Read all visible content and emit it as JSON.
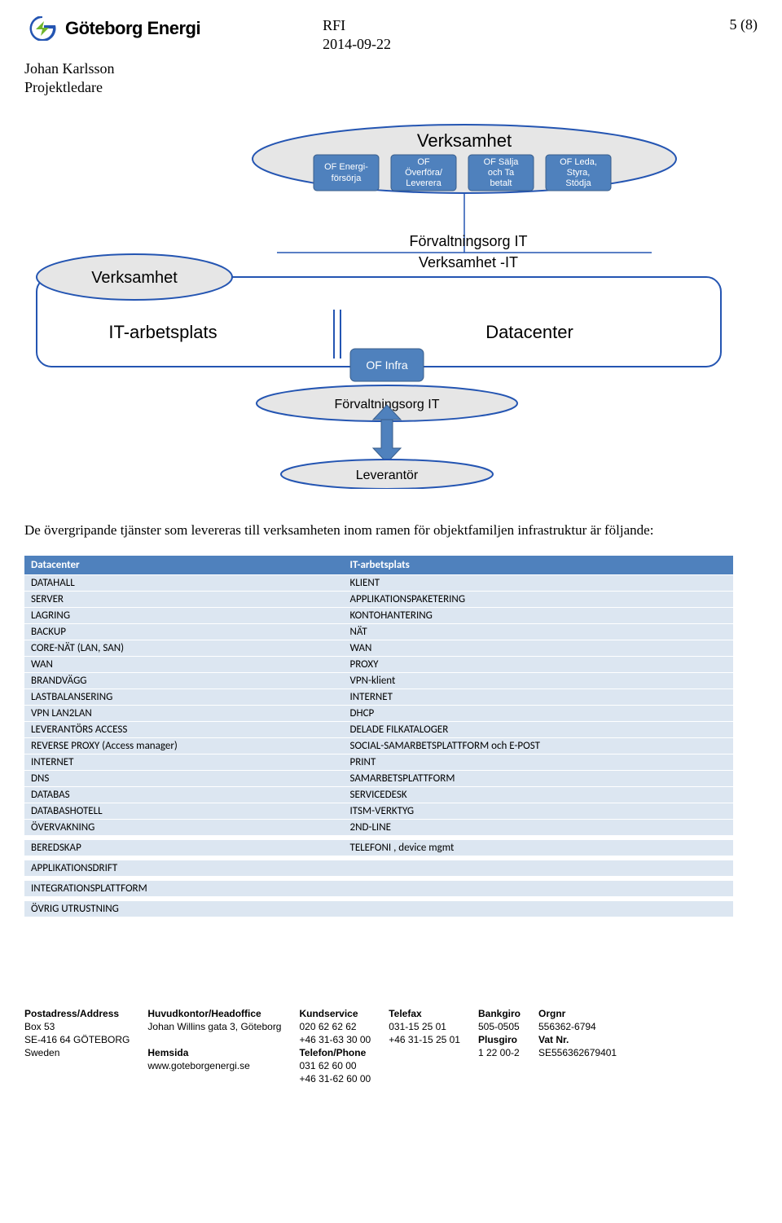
{
  "header": {
    "logo_text": "Göteborg Energi",
    "doc_type": "RFI",
    "doc_date": "2014-09-22",
    "page_num": "5 (8)",
    "author_name": "Johan Karlsson",
    "author_role": "Projektledare"
  },
  "diagram": {
    "top_ellipse": "Verksamhet",
    "top_boxes": [
      "OF Energi-\nförsörja",
      "OF\nÖverföra/\nLeverera",
      "OF Sälja\noch Ta\nbetalt",
      "OF Leda,\nStyra,\nStödja"
    ],
    "left_ellipse": "Verksamhet",
    "mid_label_top": "Förvaltningsorg IT",
    "mid_label_bottom": "Verksamhet -IT",
    "left_label": "IT-arbetsplats",
    "right_label": "Datacenter",
    "infra_box": "OF Infra",
    "infra_below": "Förvaltningsorg IT",
    "bottom_ellipse": "Leverantör",
    "colors": {
      "ellipse_fill": "#e6e6e6",
      "ellipse_stroke": "#2455b2",
      "box_fill": "#4f81bd",
      "box_stroke": "#385d8a",
      "font_color_box": "#ffffff",
      "font_color_label": "#000000",
      "big_box_stroke": "#2455b2",
      "arrow_fill": "#4f81bd"
    }
  },
  "body_text": "De övergripande tjänster som levereras till verksamheten inom ramen för objektfamiljen infrastruktur är följande:",
  "table": {
    "headers": [
      "Datacenter",
      "IT-arbetsplats"
    ],
    "rows": [
      [
        "DATAHALL",
        "KLIENT"
      ],
      [
        "SERVER",
        "APPLIKATIONSPAKETERING"
      ],
      [
        "LAGRING",
        "KONTOHANTERING"
      ],
      [
        "BACKUP",
        "NÄT"
      ],
      [
        "CORE-NÄT (LAN, SAN)",
        "WAN"
      ],
      [
        "WAN",
        "PROXY"
      ],
      [
        "BRANDVÄGG",
        "VPN-klient"
      ],
      [
        "LASTBALANSERING",
        "INTERNET"
      ],
      [
        "VPN LAN2LAN",
        "DHCP"
      ],
      [
        "LEVERANTÖRS ACCESS",
        "DELADE FILKATALOGER"
      ],
      [
        "REVERSE PROXY (Access manager)",
        "SOCIAL-SAMARBETSPLATTFORM och E-POST"
      ],
      [
        "INTERNET",
        "PRINT"
      ],
      [
        "DNS",
        "SAMARBETSPLATTFORM"
      ],
      [
        "DATABAS",
        "SERVICEDESK"
      ],
      [
        "DATABASHOTELL",
        "ITSM-VERKTYG"
      ],
      [
        "ÖVERVAKNING",
        "2ND-LINE"
      ]
    ],
    "gap1": [
      "BEREDSKAP",
      "TELEFONI , device mgmt"
    ],
    "gap2": [
      "APPLIKATIONSDRIFT",
      ""
    ],
    "gap3": [
      "INTEGRATIONSPLATTFORM",
      ""
    ],
    "gap4": [
      "ÖVRIG UTRUSTNING",
      ""
    ]
  },
  "footer": {
    "col1": {
      "h": "Postadress/Address",
      "l1": "Box 53",
      "l2": "SE-416 64 GÖTEBORG",
      "l3": "Sweden"
    },
    "col2": {
      "h": "Huvudkontor/Headoffice",
      "l1": "Johan Willins gata 3, Göteborg",
      "l2": "",
      "h2": "Hemsida",
      "l3": "www.goteborgenergi.se"
    },
    "col3": {
      "h": "Kundservice",
      "l1": "020 62 62 62",
      "l2": "+46 31-63 30 00",
      "h2": "Telefon/Phone",
      "l3": "031 62 60 00",
      "l4": "+46 31-62 60 00"
    },
    "col4": {
      "h": "Telefax",
      "l1": "031-15 25 01",
      "l2": "+46 31-15 25 01"
    },
    "col5": {
      "h": "Bankgiro",
      "l1": "505-0505",
      "h2": "Plusgiro",
      "l2": "1 22 00-2"
    },
    "col6": {
      "h": "Orgnr",
      "l1": "556362-6794",
      "h2": "Vat Nr.",
      "l2": "SE556362679401"
    }
  }
}
